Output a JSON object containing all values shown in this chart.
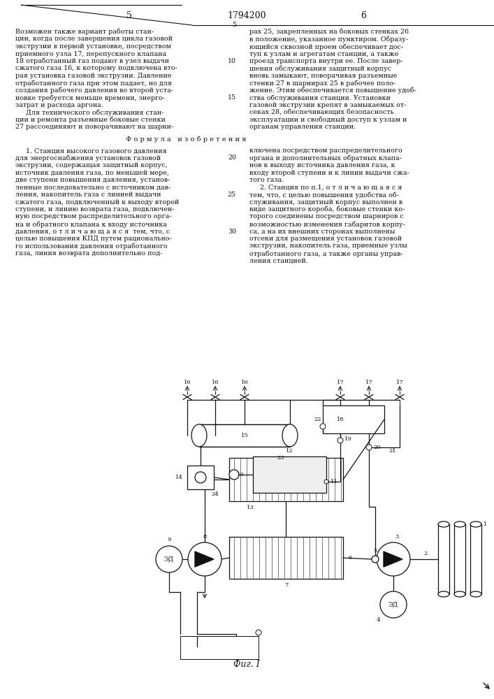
{
  "title": "Фиг. I",
  "page_number": "1794200",
  "page_sides": [
    "5",
    "6"
  ],
  "bg_color": "#ffffff",
  "line_color": "#111111",
  "text_color": "#111111",
  "font_size_body": 6.8,
  "font_size_label": 6.0,
  "font_size_header": 9,
  "font_size_title": 9,
  "left_lines": [
    "Возможен также вариант работы стан-",
    "ции, когда после завершения цикла газовой",
    "экструзии в первой установке, посредством",
    "приемного узла 17, перепускного клапана",
    "18 отработанный газ подают в узел выдачи",
    "сжатого газа 16, к которому подключена вто-",
    "рая установка газовой экструзии. Давление",
    "отработанного газа при этом падает, но для",
    "создания рабочего давления во второй уста-",
    "новке требуется меньше времени, энерго-",
    "затрат и расхода аргона.",
    "     Для технического обслуживания стан-",
    "ции и ремонта разъемные боковые стенки",
    "27 рассоединяют и поворачивают на шарни-"
  ],
  "right_lines": [
    "рах 25, закрепленных на боковых стенках 26",
    "в положение, указанное пунктиром. Образу-",
    "ющийся сквозной проем обеспечивает дос-",
    "туп к узлам и агрегатам станции, а также",
    "проезд транспорта внутри ее. После завер-",
    "шения обслуживания защитный корпус",
    "вновь замыкают, поворачивая разъемные",
    "стенки 27 в шарнирах 25 в рабочее поло-",
    "жение. Этим обеспечивается повышение удоб-",
    "ства обслуживания станции. Установки",
    "газовой экструзии крепят в замыкаемых от-",
    "секах 28, обеспечивающих безопасность",
    "эксплуатации и свободный доступ к узлам и",
    "органам управления станции."
  ],
  "formula_header": "Ф о р м у л а   и з о б р е т е н и я",
  "form_left": [
    "     1. Станция высокого газового давления",
    "для энергоснабжения установок газовой",
    "экструзии, содержащая защитный корпус,",
    "источник давления газа, по меньшей мере,",
    "две ступени повышения давления, установ-",
    "ленные последовательно с источником дав-",
    "ления, накопитель газа с линией выдачи",
    "сжатого газа, подключенный к выходу второй",
    "ступени, и линию возврата газа, подключен-",
    "ную посредством распределительного орга-",
    "на и обратного клапана к входу источника",
    "давления, о т л и ч а ю щ а я с я  тем, что, с",
    "целью повышения КПД путем рационально-",
    "го использования давления отработанного",
    "газа, линия возврата дополнительно под-"
  ],
  "form_right": [
    "ключена посредством распределительного",
    "органа и дополнительных обратных клапа-",
    "нов к выходу источника давления газа, к",
    "входу второй ступени и к линии выдачи сжа-",
    "того газа.",
    "     2. Станция по п.1, о т л и ч а ю щ а я с я",
    "тем, что, с целью повышения удобства об-",
    "служивания, защитный корпус выполнен в",
    "виде защитного короба, боковые стенки ко-",
    "торого соединены посредством шарниров с",
    "возможностью изменения габаритов корпу-",
    "са, а на их внешних сторонах выполнены",
    "отсеки для размещения установок газовой",
    "экструзии, накопитель газа, приемные узлы",
    "отработанного газа, а также органы управ-",
    "ления станцией."
  ]
}
